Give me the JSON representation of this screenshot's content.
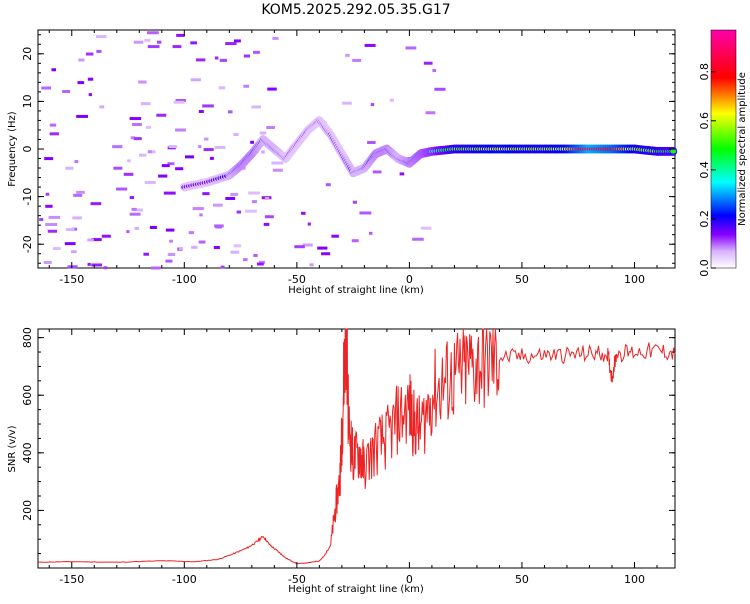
{
  "title": "KOM5.2025.292.05.35.G17",
  "chart_data": [
    {
      "type": "heatmap",
      "xlabel": "Height of straight line (km)",
      "ylabel": "Frequency (Hz)",
      "xlim": [
        -165,
        118
      ],
      "ylim": [
        -25,
        25
      ],
      "xticks": [
        -150,
        -100,
        -50,
        0,
        50,
        100
      ],
      "yticks": [
        -20,
        -10,
        0,
        10,
        20
      ],
      "colorbar": {
        "label": "Normalized spectral amplitude",
        "range": [
          0.0,
          0.97
        ],
        "ticks": [
          0.0,
          0.2,
          0.4,
          0.6,
          0.8
        ]
      },
      "ridge": {
        "x": [
          -100,
          -90,
          -80,
          -75,
          -70,
          -65,
          -60,
          -55,
          -50,
          -45,
          -40,
          -35,
          -30,
          -25,
          -20,
          -15,
          -10,
          -5,
          0,
          5,
          10,
          20,
          30,
          40,
          50,
          60,
          70,
          80,
          90,
          100,
          110,
          118
        ],
        "freq": [
          -8,
          -7,
          -5.5,
          -3.5,
          -1,
          2,
          0,
          -2,
          1,
          4,
          6,
          3,
          -1,
          -5,
          -4,
          -1,
          0,
          -2,
          -3,
          -1,
          -0.5,
          0,
          0,
          0,
          0,
          0,
          0,
          0,
          0,
          0,
          -0.5,
          -0.5
        ],
        "amplitude": [
          0.15,
          0.15,
          0.2,
          0.25,
          0.25,
          0.2,
          0.2,
          0.15,
          0.15,
          0.15,
          0.15,
          0.15,
          0.15,
          0.2,
          0.2,
          0.25,
          0.25,
          0.2,
          0.25,
          0.3,
          0.35,
          0.55,
          0.6,
          0.65,
          0.6,
          0.6,
          0.65,
          0.9,
          0.8,
          0.6,
          0.55,
          0.5
        ]
      }
    },
    {
      "type": "line",
      "xlabel": "Height of straight line (km)",
      "ylabel": "SNR (v/v)",
      "xlim": [
        -165,
        118
      ],
      "ylim": [
        0,
        830
      ],
      "xticks": [
        -150,
        -100,
        -50,
        0,
        50,
        100
      ],
      "yticks": [
        200,
        400,
        600,
        800
      ],
      "color": "#ee2222",
      "series": [
        {
          "name": "SNR",
          "x": [
            -165,
            -150,
            -130,
            -110,
            -95,
            -85,
            -78,
            -72,
            -68,
            -65,
            -62,
            -58,
            -55,
            -50,
            -45,
            -40,
            -38,
            -35,
            -33,
            -31,
            -30,
            -29,
            -28,
            -27,
            -25,
            -22,
            -20,
            -15,
            -10,
            -5,
            0,
            2,
            5,
            10,
            15,
            20,
            25,
            30,
            35,
            40,
            50,
            60,
            70,
            80,
            88,
            90,
            92,
            100,
            110,
            118
          ],
          "y": [
            20,
            22,
            20,
            25,
            22,
            30,
            50,
            70,
            90,
            110,
            80,
            55,
            35,
            15,
            18,
            25,
            40,
            80,
            200,
            300,
            450,
            700,
            830,
            500,
            380,
            400,
            350,
            420,
            450,
            520,
            560,
            500,
            480,
            600,
            640,
            660,
            690,
            710,
            720,
            730,
            735,
            740,
            740,
            745,
            745,
            660,
            745,
            750,
            755,
            745
          ]
        }
      ]
    }
  ]
}
